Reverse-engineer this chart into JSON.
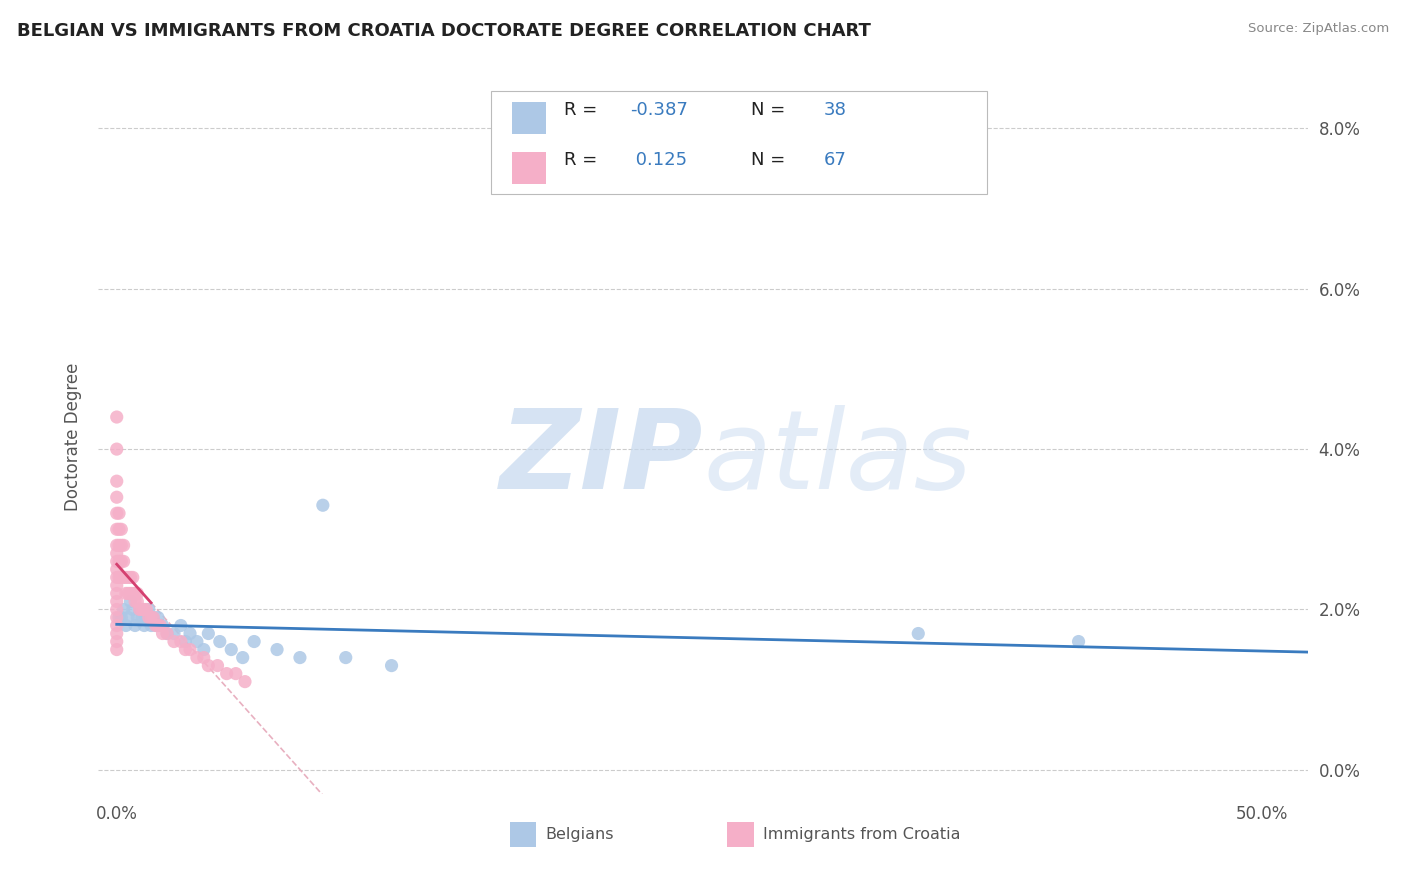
{
  "title": "BELGIAN VS IMMIGRANTS FROM CROATIA DOCTORATE DEGREE CORRELATION CHART",
  "source": "Source: ZipAtlas.com",
  "ylabel": "Doctorate Degree",
  "legend_labels": [
    "Belgians",
    "Immigrants from Croatia"
  ],
  "legend_R": [
    -0.387,
    0.125
  ],
  "legend_N": [
    38,
    67
  ],
  "blue_color": "#adc8e6",
  "pink_color": "#f5afc8",
  "blue_line_color": "#3a7bbf",
  "pink_line_color": "#d44070",
  "dashed_line_color": "#e8b0c0",
  "grid_color": "#cccccc",
  "belgians_x": [
    0.001,
    0.002,
    0.003,
    0.004,
    0.005,
    0.006,
    0.007,
    0.008,
    0.009,
    0.01,
    0.011,
    0.012,
    0.013,
    0.014,
    0.015,
    0.016,
    0.017,
    0.018,
    0.02,
    0.022,
    0.025,
    0.028,
    0.03,
    0.032,
    0.035,
    0.038,
    0.04,
    0.045,
    0.05,
    0.055,
    0.06,
    0.07,
    0.08,
    0.09,
    0.1,
    0.12,
    0.35,
    0.42
  ],
  "belgians_y": [
    0.019,
    0.019,
    0.02,
    0.018,
    0.019,
    0.021,
    0.02,
    0.018,
    0.019,
    0.02,
    0.019,
    0.018,
    0.019,
    0.02,
    0.018,
    0.019,
    0.018,
    0.019,
    0.018,
    0.017,
    0.017,
    0.018,
    0.016,
    0.017,
    0.016,
    0.015,
    0.017,
    0.016,
    0.015,
    0.014,
    0.016,
    0.015,
    0.014,
    0.033,
    0.014,
    0.013,
    0.017,
    0.016
  ],
  "croatia_x": [
    0.0,
    0.0,
    0.0,
    0.0,
    0.0,
    0.0,
    0.0,
    0.0,
    0.0,
    0.0,
    0.0,
    0.0,
    0.0,
    0.0,
    0.0,
    0.0,
    0.0,
    0.0,
    0.0,
    0.0,
    0.001,
    0.001,
    0.001,
    0.001,
    0.001,
    0.002,
    0.002,
    0.002,
    0.002,
    0.003,
    0.003,
    0.003,
    0.004,
    0.004,
    0.005,
    0.005,
    0.006,
    0.006,
    0.007,
    0.007,
    0.008,
    0.008,
    0.009,
    0.009,
    0.01,
    0.011,
    0.012,
    0.013,
    0.014,
    0.015,
    0.016,
    0.017,
    0.018,
    0.019,
    0.02,
    0.022,
    0.025,
    0.028,
    0.03,
    0.032,
    0.035,
    0.038,
    0.04,
    0.044,
    0.048,
    0.052,
    0.056
  ],
  "croatia_y": [
    0.015,
    0.016,
    0.017,
    0.018,
    0.019,
    0.02,
    0.021,
    0.022,
    0.023,
    0.024,
    0.025,
    0.026,
    0.027,
    0.028,
    0.03,
    0.032,
    0.034,
    0.036,
    0.04,
    0.044,
    0.024,
    0.026,
    0.028,
    0.03,
    0.032,
    0.024,
    0.026,
    0.028,
    0.03,
    0.024,
    0.026,
    0.028,
    0.022,
    0.024,
    0.022,
    0.024,
    0.022,
    0.024,
    0.022,
    0.024,
    0.021,
    0.022,
    0.021,
    0.022,
    0.02,
    0.02,
    0.02,
    0.02,
    0.019,
    0.019,
    0.019,
    0.018,
    0.018,
    0.018,
    0.017,
    0.017,
    0.016,
    0.016,
    0.015,
    0.015,
    0.014,
    0.014,
    0.013,
    0.013,
    0.012,
    0.012,
    0.011
  ],
  "xlim": [
    -0.008,
    0.52
  ],
  "ylim": [
    -0.003,
    0.086
  ],
  "yticks": [
    0.0,
    0.02,
    0.04,
    0.06,
    0.08
  ],
  "ytick_labels": [
    "0.0%",
    "2.0%",
    "4.0%",
    "6.0%",
    "8.0%"
  ],
  "xtick_positions": [
    0.0,
    0.5
  ],
  "xtick_labels": [
    "0.0%",
    "50.0%"
  ]
}
